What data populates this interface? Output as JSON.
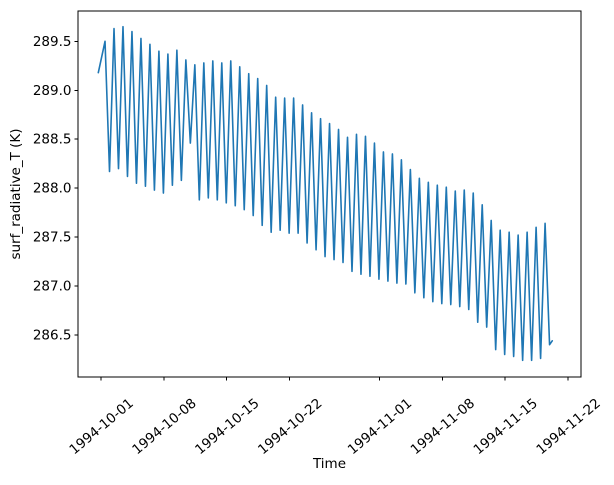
{
  "figure": {
    "background_color": "#ffffff",
    "chart_data": {
      "type": "line",
      "title": "",
      "xlabel": "Time",
      "ylabel": "surf_radiative_T (K)",
      "grid": false,
      "legend": false,
      "line_color": "#1f77b4",
      "axis_color": "#000000",
      "x_tick_labels": [
        "1994-10-01",
        "1994-10-08",
        "1994-10-15",
        "1994-10-22",
        "1994-11-01",
        "1994-11-08",
        "1994-11-15",
        "1994-11-22"
      ],
      "x_tick_days_from_start": [
        0,
        7,
        14,
        21,
        31,
        38,
        45,
        52
      ],
      "x_tick_rotation_deg": 40,
      "y_ticks": [
        286.5,
        287.0,
        287.5,
        288.0,
        288.5,
        289.0,
        289.5
      ],
      "xlim_days_from_start": [
        -2.56,
        53.45
      ],
      "ylim": [
        286.07,
        289.81
      ],
      "x_start_date": "1994-10-01",
      "series": {
        "name": "surf_radiative_T",
        "description": "Diurnal temperature oscillation, one peak and one trough per day; day index 0 = 1994-10-01",
        "start_point": {
          "day": -0.3,
          "value": 289.18
        },
        "end_point": {
          "day": 50.25,
          "value": 286.44
        },
        "peak_time_fraction": 0.45,
        "trough_time_fraction": 0.95,
        "daily_peaks": [
          289.5,
          289.63,
          289.65,
          289.6,
          289.53,
          289.47,
          289.4,
          289.37,
          289.41,
          289.31,
          289.26,
          289.28,
          289.3,
          289.28,
          289.3,
          289.24,
          289.17,
          289.12,
          289.05,
          288.93,
          288.92,
          288.92,
          288.85,
          288.77,
          288.71,
          288.66,
          288.6,
          288.52,
          288.55,
          288.53,
          288.46,
          288.37,
          288.35,
          288.29,
          288.19,
          288.1,
          288.06,
          288.03,
          288.01,
          287.97,
          287.98,
          287.95,
          287.83,
          287.67,
          287.57,
          287.55,
          287.52,
          287.55,
          287.6,
          287.64
        ],
        "daily_troughs": [
          288.17,
          288.2,
          288.12,
          288.05,
          288.02,
          287.98,
          287.95,
          288.03,
          288.08,
          288.46,
          287.88,
          287.9,
          287.88,
          287.85,
          287.82,
          287.78,
          287.72,
          287.62,
          287.55,
          287.57,
          287.54,
          287.54,
          287.44,
          287.37,
          287.3,
          287.27,
          287.24,
          287.15,
          287.12,
          287.1,
          287.07,
          287.05,
          287.03,
          287.02,
          286.93,
          286.88,
          286.84,
          286.82,
          286.81,
          286.79,
          286.76,
          286.63,
          286.58,
          286.35,
          286.3,
          286.28,
          286.24,
          286.24,
          286.26,
          286.4
        ]
      }
    }
  }
}
